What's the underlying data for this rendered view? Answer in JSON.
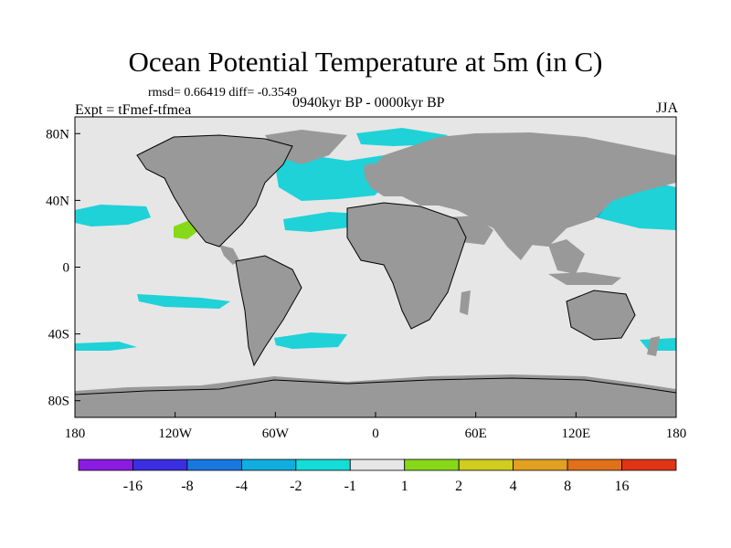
{
  "figure": {
    "title": "Ocean Potential Temperature at 5m (in C)",
    "stats": "rmsd= 0.66419 diff= -0.3549",
    "experiment": "Expt = tFmef-tfmea",
    "period": "0940kyr BP - 0000kyr BP",
    "season": "JJA"
  },
  "axes": {
    "lon_ticks": [
      "180",
      "120W",
      "60W",
      "0",
      "60E",
      "120E",
      "180"
    ],
    "lat_ticks": [
      "80N",
      "40N",
      "0",
      "40S",
      "80S"
    ]
  },
  "colorbar": {
    "labels": [
      "-16",
      "-8",
      "-4",
      "-2",
      "-1",
      "1",
      "2",
      "4",
      "8",
      "16"
    ],
    "colors": [
      "#8a1be0",
      "#3a2ee0",
      "#1878e0",
      "#10aee0",
      "#14dcd6",
      "#e6e6e6",
      "#88d81a",
      "#d0cc20",
      "#e2a020",
      "#e0701a",
      "#e03416"
    ]
  },
  "palette": {
    "land": "#999999",
    "ocean": "#e6e6e6",
    "anomaly_cool": "#1ed2d8",
    "anomaly_cooler": "#14aee0",
    "anomaly_warm": "#88d81a"
  }
}
